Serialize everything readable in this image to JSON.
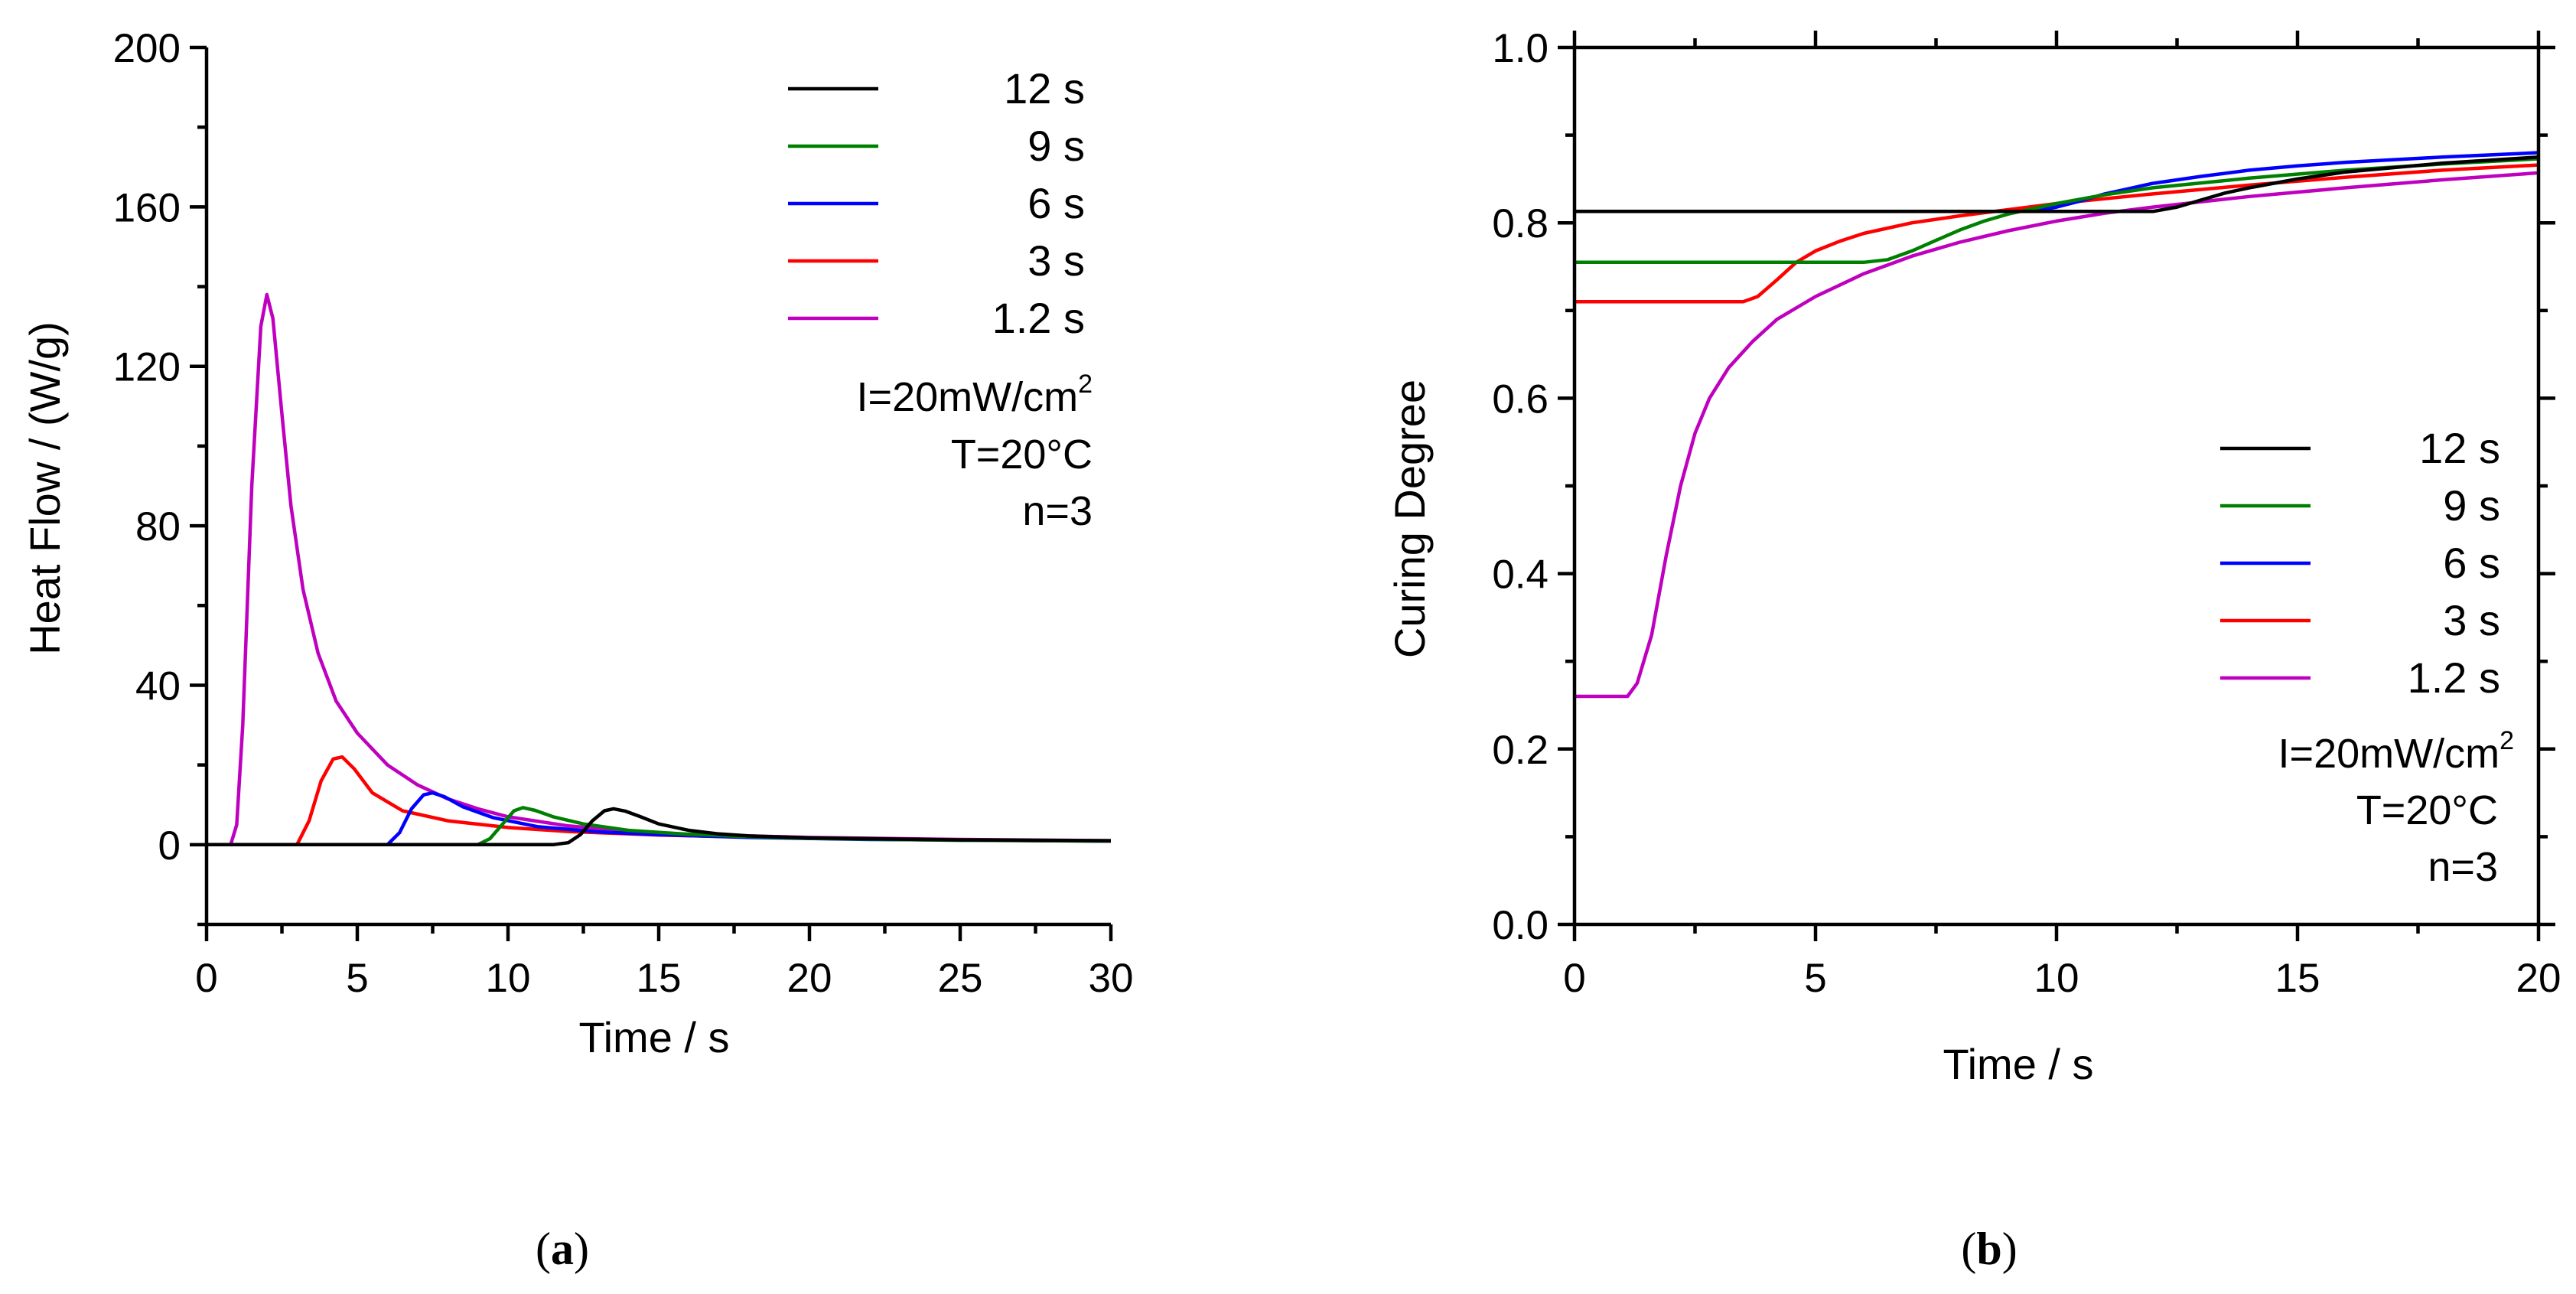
{
  "chart_data": [
    {
      "type": "line",
      "panel_label": "a",
      "title": "",
      "xlabel": "Time / s",
      "ylabel": "Heat Flow / (W/g)",
      "xlim": [
        0,
        30
      ],
      "ylim": [
        -20,
        200
      ],
      "xticks": [
        0,
        5,
        10,
        15,
        20,
        25,
        30
      ],
      "yticks": [
        0,
        40,
        80,
        120,
        160,
        200
      ],
      "legend_position": "top-right",
      "annotations": {
        "intensity_prefix": "I=20mW/cm",
        "intensity_sup": "2",
        "temperature": "T=20°C",
        "n": "n=3"
      },
      "series": [
        {
          "name": "12 s",
          "color": "#000000",
          "x": [
            0,
            11.5,
            12.0,
            12.4,
            12.8,
            13.2,
            13.5,
            13.9,
            14.4,
            15.0,
            16.0,
            17.0,
            18.0,
            20.0,
            25.0,
            30.0
          ],
          "y": [
            0,
            0,
            0.5,
            2.5,
            6.0,
            8.5,
            9.0,
            8.4,
            7.0,
            5.2,
            3.6,
            2.7,
            2.2,
            1.7,
            1.2,
            1.0
          ]
        },
        {
          "name": "9 s",
          "color": "#008000",
          "x": [
            0,
            9.0,
            9.4,
            9.8,
            10.2,
            10.5,
            10.9,
            11.5,
            12.5,
            14.0,
            16.0,
            18.0,
            20.0,
            25.0,
            30.0
          ],
          "y": [
            0,
            0,
            1.5,
            5.0,
            8.5,
            9.3,
            8.6,
            7.0,
            5.2,
            3.6,
            2.6,
            2.0,
            1.6,
            1.1,
            0.9
          ]
        },
        {
          "name": "6 s",
          "color": "#0000FF",
          "x": [
            0,
            6.0,
            6.4,
            6.8,
            7.2,
            7.5,
            7.9,
            8.5,
            9.5,
            11.0,
            13.0,
            15.0,
            18.0,
            22.0,
            30.0
          ],
          "y": [
            0,
            0,
            3.0,
            9.0,
            12.5,
            13.0,
            12.0,
            9.5,
            6.8,
            4.5,
            3.2,
            2.5,
            1.8,
            1.3,
            0.9
          ]
        },
        {
          "name": "3 s",
          "color": "#FF0000",
          "x": [
            0,
            3.0,
            3.4,
            3.8,
            4.2,
            4.5,
            4.9,
            5.5,
            6.5,
            8.0,
            10.0,
            12.0,
            15.0,
            20.0,
            25.0,
            30.0
          ],
          "y": [
            0,
            0,
            6.0,
            16.0,
            21.5,
            22.0,
            19.0,
            13.0,
            8.5,
            6.0,
            4.3,
            3.3,
            2.4,
            1.6,
            1.2,
            0.9
          ]
        },
        {
          "name": "1.2 s",
          "color": "#BF00BF",
          "x": [
            0,
            0.8,
            1.0,
            1.2,
            1.5,
            1.8,
            2.0,
            2.2,
            2.5,
            2.8,
            3.2,
            3.7,
            4.3,
            5.0,
            6.0,
            7.0,
            8.0,
            9.0,
            10.0,
            12.0,
            14.0,
            16.0,
            20.0,
            25.0,
            30.0
          ],
          "y": [
            0,
            0,
            5,
            30,
            90,
            130,
            138,
            132,
            108,
            85,
            64,
            48,
            36,
            28,
            20,
            15,
            11.5,
            9.0,
            7.0,
            4.7,
            3.4,
            2.6,
            1.8,
            1.3,
            1.0
          ]
        }
      ]
    },
    {
      "type": "line",
      "panel_label": "b",
      "title": "",
      "xlabel": "Time / s",
      "ylabel": "Curing Degree",
      "xlim": [
        0,
        20
      ],
      "ylim": [
        0.0,
        1.0
      ],
      "xticks": [
        0,
        5,
        10,
        15,
        20
      ],
      "yticks": [
        0.0,
        0.2,
        0.4,
        0.6,
        0.8,
        1.0
      ],
      "legend_position": "bottom-right",
      "annotations": {
        "intensity_prefix": "I=20mW/cm",
        "intensity_sup": "2",
        "temperature": "T=20°C",
        "n": "n=3"
      },
      "series": [
        {
          "name": "12 s",
          "color": "#000000",
          "x": [
            0,
            12.0,
            12.5,
            13.0,
            13.5,
            14.0,
            15.0,
            16.0,
            18.0,
            20.0
          ],
          "y": [
            0.813,
            0.813,
            0.818,
            0.826,
            0.834,
            0.84,
            0.85,
            0.858,
            0.868,
            0.875
          ]
        },
        {
          "name": "9 s",
          "color": "#008000",
          "x": [
            0,
            6.0,
            6.5,
            7.0,
            7.5,
            8.0,
            8.5,
            9.0,
            10.0,
            11.0,
            12.0,
            14.0,
            16.0,
            18.0,
            20.0
          ],
          "y": [
            0.755,
            0.755,
            0.758,
            0.768,
            0.78,
            0.792,
            0.802,
            0.81,
            0.822,
            0.832,
            0.84,
            0.851,
            0.86,
            0.867,
            0.873
          ]
        },
        {
          "name": "6 s",
          "color": "#0000FF",
          "x": [
            0,
            9.5,
            10.0,
            10.5,
            11.0,
            12.0,
            13.0,
            14.0,
            15.0,
            16.0,
            18.0,
            20.0
          ],
          "y": [
            0.813,
            0.813,
            0.818,
            0.825,
            0.833,
            0.845,
            0.853,
            0.86,
            0.865,
            0.869,
            0.875,
            0.88
          ]
        },
        {
          "name": "3 s",
          "color": "#FF0000",
          "x": [
            0,
            3.5,
            3.8,
            4.2,
            4.6,
            5.0,
            5.5,
            6.0,
            7.0,
            8.0,
            9.0,
            10.0,
            12.0,
            14.0,
            16.0,
            18.0,
            20.0
          ],
          "y": [
            0.71,
            0.71,
            0.716,
            0.735,
            0.755,
            0.768,
            0.779,
            0.788,
            0.8,
            0.808,
            0.815,
            0.822,
            0.833,
            0.843,
            0.852,
            0.86,
            0.866
          ]
        },
        {
          "name": "1.2 s",
          "color": "#BF00BF",
          "x": [
            0,
            1.1,
            1.3,
            1.6,
            1.9,
            2.2,
            2.5,
            2.8,
            3.2,
            3.7,
            4.2,
            5.0,
            6.0,
            7.0,
            8.0,
            9.0,
            10.0,
            11.0,
            12.0,
            14.0,
            16.0,
            18.0,
            20.0
          ],
          "y": [
            0.26,
            0.26,
            0.275,
            0.33,
            0.42,
            0.5,
            0.56,
            0.6,
            0.635,
            0.665,
            0.69,
            0.716,
            0.742,
            0.762,
            0.778,
            0.791,
            0.802,
            0.811,
            0.818,
            0.83,
            0.84,
            0.849,
            0.857
          ]
        }
      ]
    }
  ]
}
